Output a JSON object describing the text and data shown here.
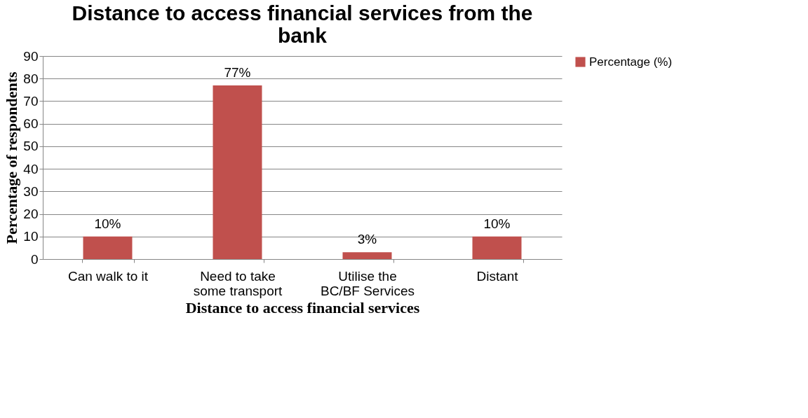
{
  "chart_data": {
    "type": "bar",
    "title": "Distance to access financial services from the bank",
    "xlabel": "Distance to access financial services",
    "ylabel": "Percentage of respondents",
    "categories": [
      "Can walk to it",
      "Need to take some transport",
      "Utilise the BC/BF Services",
      "Distant"
    ],
    "series": [
      {
        "name": "Percentage (%)",
        "color": "#c0504d",
        "values": [
          10,
          77,
          3,
          10
        ],
        "value_labels": [
          "10%",
          "77%",
          "3%",
          "10%"
        ]
      }
    ],
    "ylim": [
      0,
      90
    ],
    "yticks": [
      0,
      10,
      20,
      30,
      40,
      50,
      60,
      70,
      80,
      90
    ],
    "grid": "y",
    "legend": "right"
  }
}
